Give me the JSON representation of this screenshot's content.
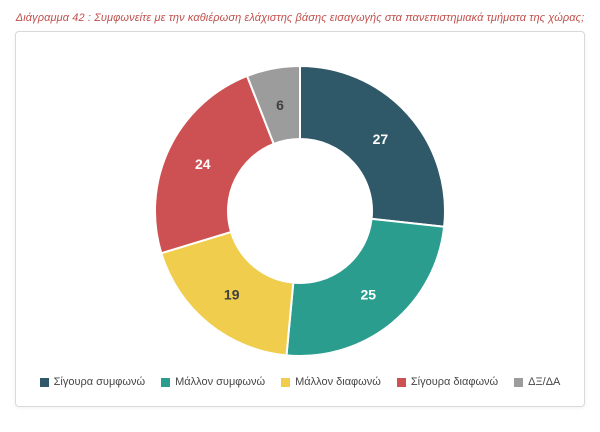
{
  "chart_data": {
    "type": "pie",
    "subtype": "donut",
    "title": "Διάγραμμα 42 : Συμφωνείτε με την καθιέρωση ελάχιστης βάσης εισαγωγής στα πανεπιστημιακά τμήματα της χώρας;",
    "categories": [
      "Σίγουρα συμφωνώ",
      "Μάλλον συμφωνώ",
      "Μάλλον διαφωνώ",
      "Σίγουρα διαφωνώ",
      "ΔΞ/ΔΑ"
    ],
    "values": [
      27,
      25,
      19,
      24,
      6
    ],
    "colors": [
      "#2f5868",
      "#2a9d8f",
      "#f0cd4c",
      "#cd5152",
      "#9c9c9c"
    ],
    "label_colors": [
      "#ffffff",
      "#ffffff",
      "#3f3f3f",
      "#ffffff",
      "#3f3f3f"
    ],
    "title_color": "#c0504d",
    "legend_position": "bottom",
    "start_angle_deg": 0,
    "direction": "clockwise",
    "data_labels": "values"
  }
}
